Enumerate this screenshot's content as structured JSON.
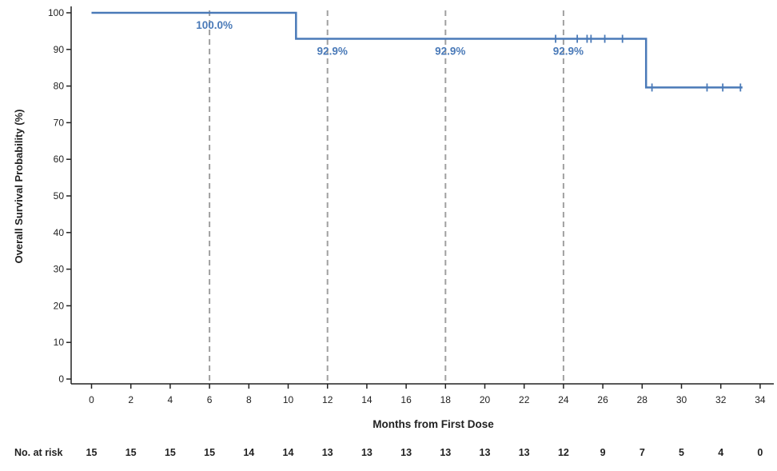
{
  "chart_data": {
    "type": "line",
    "xlabel": "Months from First Dose",
    "ylabel": "Overall Survival Probability (%)",
    "xlim": [
      -1,
      34
    ],
    "ylim": [
      -2,
      101
    ],
    "x_ticks": [
      0,
      2,
      4,
      6,
      8,
      10,
      12,
      14,
      16,
      18,
      20,
      22,
      24,
      26,
      28,
      30,
      32,
      34
    ],
    "y_ticks": [
      0,
      10,
      20,
      30,
      40,
      50,
      60,
      70,
      80,
      90,
      100
    ],
    "grid": false,
    "series": [
      {
        "step_points": [
          {
            "x": 0,
            "y": 100
          },
          {
            "x": 10.4,
            "y": 100
          },
          {
            "x": 10.4,
            "y": 92.9
          },
          {
            "x": 28.2,
            "y": 92.9
          },
          {
            "x": 28.2,
            "y": 79.6
          },
          {
            "x": 33.1,
            "y": 79.6
          }
        ],
        "censor_marks": [
          {
            "x": 23.6,
            "y": 92.9
          },
          {
            "x": 24.7,
            "y": 92.9
          },
          {
            "x": 25.2,
            "y": 92.9
          },
          {
            "x": 25.4,
            "y": 92.9
          },
          {
            "x": 26.1,
            "y": 92.9
          },
          {
            "x": 27.0,
            "y": 92.9
          },
          {
            "x": 28.5,
            "y": 79.6
          },
          {
            "x": 31.3,
            "y": 79.6
          },
          {
            "x": 32.1,
            "y": 79.6
          },
          {
            "x": 33.0,
            "y": 79.6
          }
        ]
      }
    ],
    "reference_lines_x": [
      6,
      12,
      18,
      24
    ],
    "annotations": [
      {
        "x": 6,
        "text": "100.0%"
      },
      {
        "x": 12,
        "text": "92.9%"
      },
      {
        "x": 18,
        "text": "92.9%"
      },
      {
        "x": 24,
        "text": "92.9%"
      }
    ],
    "at_risk": {
      "label": "No. at risk",
      "x": [
        0,
        2,
        4,
        6,
        8,
        10,
        12,
        14,
        16,
        18,
        20,
        22,
        24,
        26,
        28,
        30,
        32,
        34
      ],
      "values": [
        "15",
        "15",
        "15",
        "15",
        "14",
        "14",
        "13",
        "13",
        "13",
        "13",
        "13",
        "13",
        "12",
        "9",
        "7",
        "5",
        "4",
        "0"
      ]
    },
    "colors": {
      "series": "#4a7ab8",
      "annotation": "#4a7ab8",
      "reference_line": "#a0a0a0",
      "axis": "#222222"
    }
  }
}
